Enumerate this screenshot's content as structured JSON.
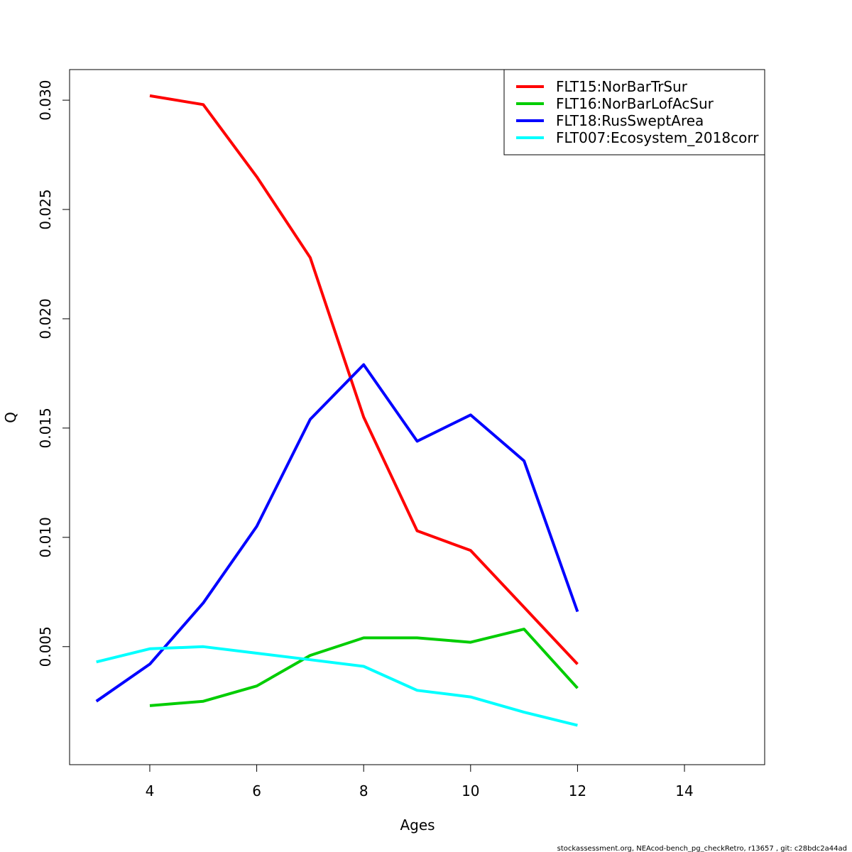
{
  "chart_data": {
    "type": "line",
    "title": "",
    "xlabel": "Ages",
    "ylabel": "Q",
    "xlim": [
      2.5,
      15.5
    ],
    "ylim": [
      -0.0004,
      0.0314
    ],
    "xticks": [
      4,
      6,
      8,
      10,
      12,
      14
    ],
    "xtick_labels": [
      "4",
      "6",
      "8",
      "10",
      "12",
      "14"
    ],
    "yticks": [
      0.005,
      0.01,
      0.015,
      0.02,
      0.025,
      0.03
    ],
    "ytick_labels": [
      "0.005",
      "0.010",
      "0.015",
      "0.020",
      "0.025",
      "0.030"
    ],
    "grid": false,
    "legend_position": "top-right",
    "series": [
      {
        "name": "FLT15:NorBarTrSur",
        "color": "#ff0000",
        "x": [
          4,
          5,
          6,
          7,
          8,
          9,
          10,
          11,
          12
        ],
        "y": [
          0.0302,
          0.0298,
          0.0265,
          0.0228,
          0.0155,
          0.0103,
          0.0094,
          0.0068,
          0.0042
        ]
      },
      {
        "name": "FLT16:NorBarLofAcSur",
        "color": "#00cd00",
        "x": [
          4,
          5,
          6,
          7,
          8,
          9,
          10,
          11,
          12
        ],
        "y": [
          0.0023,
          0.0025,
          0.0032,
          0.0046,
          0.0054,
          0.0054,
          0.0052,
          0.0058,
          0.0031
        ]
      },
      {
        "name": "FLT18:RusSweptArea",
        "color": "#0000ff",
        "x": [
          3,
          4,
          5,
          6,
          7,
          8,
          9,
          10,
          11,
          12
        ],
        "y": [
          0.0025,
          0.0042,
          0.007,
          0.0105,
          0.0154,
          0.0179,
          0.0144,
          0.0156,
          0.0135,
          0.0066
        ]
      },
      {
        "name": "FLT007:Ecosystem_2018corr",
        "color": "#00ffff",
        "x": [
          3,
          4,
          5,
          6,
          7,
          8,
          9,
          10,
          11,
          12
        ],
        "y": [
          0.0043,
          0.0049,
          0.005,
          0.0047,
          0.0044,
          0.0041,
          0.003,
          0.0027,
          0.002,
          0.0014
        ]
      }
    ]
  },
  "footer": {
    "text": "stockassessment.org, NEAcod-bench_pg_checkRetro, r13657 , git: c28bdc2a44ad"
  }
}
